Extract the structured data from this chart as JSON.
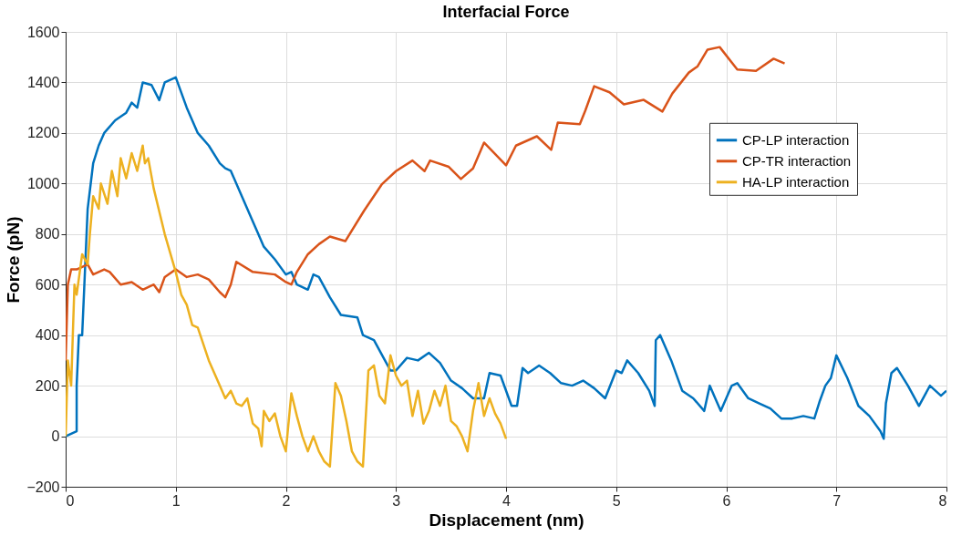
{
  "chart_data": {
    "type": "line",
    "title": "Interfacial Force",
    "xlabel": "Displacement (nm)",
    "ylabel": "Force (pN)",
    "xlim": [
      0,
      8
    ],
    "xticks": [
      0,
      1,
      2,
      3,
      4,
      5,
      6,
      7,
      8
    ],
    "ylim": [
      -200,
      1600
    ],
    "yticks": [
      -200,
      0,
      200,
      400,
      600,
      800,
      1000,
      1200,
      1400,
      1600
    ],
    "grid": true,
    "legend": "right",
    "marker": "none",
    "line_style": "solid",
    "series": [
      {
        "name": "CP-LP interaction",
        "color": "#0072bd",
        "x": [
          0,
          0.05,
          0.1,
          0.1,
          0.12,
          0.15,
          0.17,
          0.2,
          0.25,
          0.3,
          0.35,
          0.45,
          0.55,
          0.6,
          0.65,
          0.7,
          0.78,
          0.85,
          0.9,
          1.0,
          1.1,
          1.2,
          1.3,
          1.4,
          1.45,
          1.5,
          1.6,
          1.7,
          1.8,
          1.9,
          2.0,
          2.05,
          2.1,
          2.2,
          2.25,
          2.3,
          2.4,
          2.5,
          2.65,
          2.7,
          2.8,
          2.9,
          2.95,
          3.0,
          3.1,
          3.2,
          3.3,
          3.4,
          3.5,
          3.6,
          3.7,
          3.8,
          3.85,
          3.95,
          4.05,
          4.1,
          4.15,
          4.2,
          4.3,
          4.4,
          4.5,
          4.6,
          4.7,
          4.8,
          4.9,
          5.0,
          5.05,
          5.1,
          5.2,
          5.3,
          5.35,
          5.36,
          5.4,
          5.5,
          5.6,
          5.7,
          5.8,
          5.85,
          5.9,
          5.95,
          6.05,
          6.1,
          6.2,
          6.3,
          6.4,
          6.5,
          6.6,
          6.7,
          6.8,
          6.85,
          6.9,
          6.95,
          7.0,
          7.1,
          7.2,
          7.3,
          7.4,
          7.43,
          7.45,
          7.5,
          7.55,
          7.65,
          7.75,
          7.85,
          7.95,
          8.0
        ],
        "values": [
          0,
          10,
          20,
          200,
          400,
          400,
          600,
          900,
          1080,
          1150,
          1200,
          1250,
          1280,
          1320,
          1300,
          1400,
          1390,
          1330,
          1400,
          1420,
          1300,
          1200,
          1150,
          1080,
          1060,
          1050,
          950,
          850,
          750,
          700,
          640,
          650,
          600,
          580,
          640,
          630,
          550,
          480,
          470,
          400,
          380,
          300,
          260,
          260,
          310,
          300,
          330,
          290,
          220,
          190,
          150,
          150,
          250,
          240,
          120,
          120,
          270,
          250,
          280,
          250,
          210,
          200,
          220,
          190,
          150,
          260,
          250,
          300,
          250,
          180,
          120,
          380,
          400,
          300,
          180,
          150,
          100,
          200,
          150,
          100,
          200,
          210,
          150,
          130,
          110,
          70,
          70,
          80,
          70,
          140,
          200,
          230,
          320,
          230,
          120,
          80,
          20,
          -10,
          130,
          250,
          270,
          200,
          120,
          200,
          160,
          180
        ]
      },
      {
        "name": "CP-TR interaction",
        "color": "#d95319",
        "x": [
          0,
          0.02,
          0.05,
          0.1,
          0.2,
          0.25,
          0.35,
          0.4,
          0.5,
          0.6,
          0.7,
          0.8,
          0.85,
          0.9,
          1.0,
          1.1,
          1.2,
          1.3,
          1.4,
          1.45,
          1.5,
          1.55,
          1.7,
          1.9,
          2.0,
          2.05,
          2.1,
          2.2,
          2.3,
          2.4,
          2.54,
          2.71,
          2.87,
          3.0,
          3.15,
          3.26,
          3.31,
          3.48,
          3.59,
          3.7,
          3.8,
          4.0,
          4.09,
          4.28,
          4.41,
          4.47,
          4.67,
          4.72,
          4.8,
          4.94,
          5.07,
          5.25,
          5.42,
          5.51,
          5.66,
          5.74,
          5.83,
          5.94,
          6.1,
          6.27,
          6.43,
          6.53
        ],
        "values": [
          300,
          600,
          660,
          660,
          680,
          640,
          660,
          650,
          600,
          610,
          580,
          600,
          570,
          630,
          660,
          630,
          640,
          620,
          570,
          550,
          600,
          690,
          650,
          640,
          610,
          600,
          650,
          720,
          760,
          790,
          772,
          892,
          996,
          1049,
          1091,
          1049,
          1091,
          1066,
          1018,
          1060,
          1162,
          1072,
          1150,
          1187,
          1133,
          1241,
          1235,
          1289,
          1385,
          1361,
          1313,
          1331,
          1285,
          1356,
          1439,
          1464,
          1530,
          1540,
          1451,
          1446,
          1494,
          1475
        ]
      },
      {
        "name": "HA-LP interaction",
        "color": "#edb120",
        "x": [
          0,
          0.02,
          0.05,
          0.08,
          0.1,
          0.15,
          0.2,
          0.22,
          0.25,
          0.3,
          0.32,
          0.38,
          0.42,
          0.47,
          0.5,
          0.55,
          0.6,
          0.65,
          0.7,
          0.72,
          0.75,
          0.8,
          0.9,
          1.0,
          1.05,
          1.1,
          1.15,
          1.2,
          1.3,
          1.4,
          1.45,
          1.5,
          1.55,
          1.6,
          1.65,
          1.7,
          1.75,
          1.78,
          1.8,
          1.85,
          1.9,
          1.95,
          2.0,
          2.05,
          2.1,
          2.15,
          2.2,
          2.25,
          2.3,
          2.35,
          2.4,
          2.45,
          2.5,
          2.55,
          2.6,
          2.65,
          2.7,
          2.75,
          2.8,
          2.85,
          2.9,
          2.95,
          3.0,
          3.05,
          3.1,
          3.15,
          3.2,
          3.25,
          3.3,
          3.35,
          3.4,
          3.45,
          3.5,
          3.55,
          3.6,
          3.65,
          3.7,
          3.75,
          3.8,
          3.85,
          3.9,
          3.95,
          4.0
        ],
        "values": [
          0,
          300,
          200,
          600,
          560,
          720,
          680,
          800,
          950,
          900,
          1000,
          920,
          1050,
          950,
          1100,
          1020,
          1120,
          1050,
          1150,
          1080,
          1100,
          980,
          800,
          650,
          560,
          520,
          440,
          430,
          300,
          200,
          150,
          180,
          130,
          120,
          150,
          50,
          30,
          -40,
          100,
          60,
          90,
          0,
          -60,
          170,
          80,
          0,
          -60,
          0,
          -60,
          -100,
          -120,
          210,
          160,
          60,
          -60,
          -100,
          -120,
          260,
          280,
          160,
          130,
          320,
          240,
          200,
          220,
          80,
          180,
          50,
          100,
          180,
          120,
          200,
          60,
          40,
          0,
          -60,
          100,
          210,
          80,
          150,
          90,
          50,
          -10
        ]
      }
    ]
  }
}
